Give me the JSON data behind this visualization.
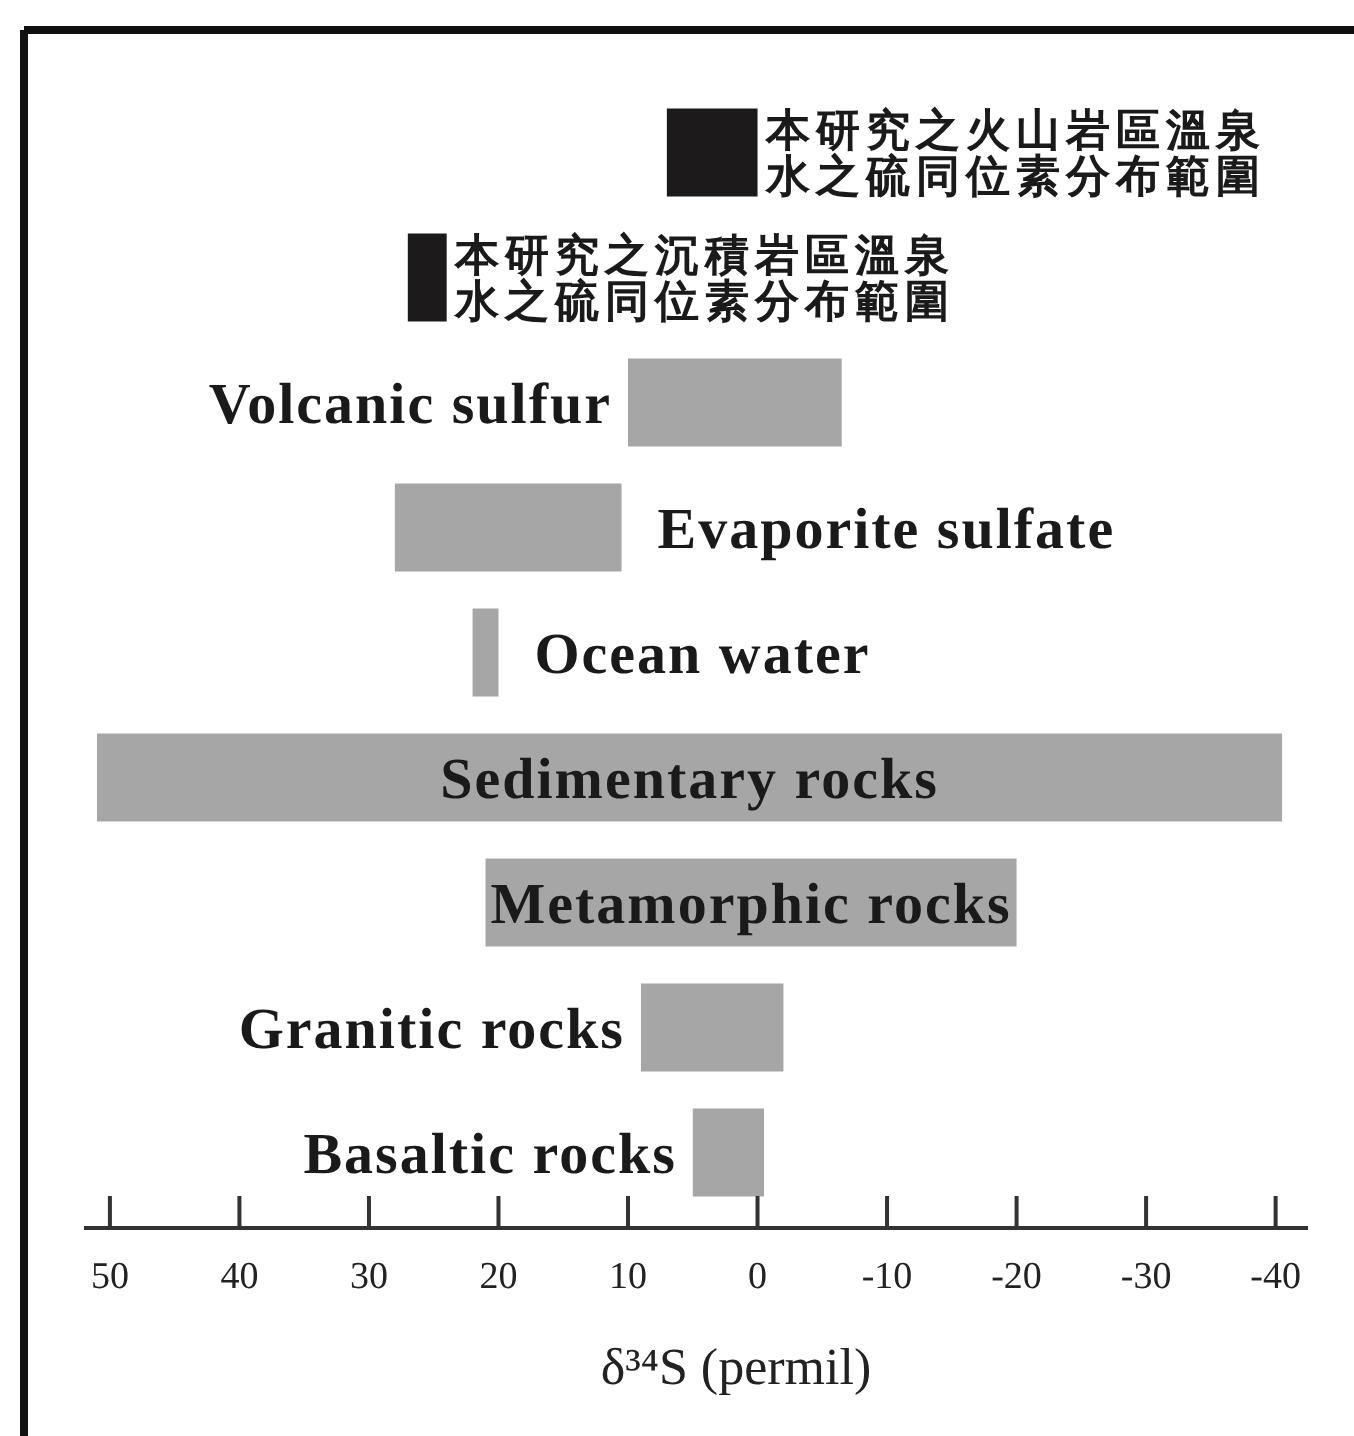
{
  "chart_data": {
    "type": "bar",
    "orientation": "horizontal",
    "categories": [
      "本研究之火山岩區溫泉水之硫同位素分布範圍",
      "本研究之沉積岩區溫泉水之硫同位素分布範圍",
      "Volcanic sulfur",
      "Evaporite sulfate",
      "Ocean water",
      "Sedimentary rocks",
      "Metamorphic rocks",
      "Granitic rocks",
      "Basaltic rocks"
    ],
    "base": [
      7,
      27,
      10,
      28,
      22,
      51,
      21,
      9,
      5
    ],
    "values": [
      -7,
      -3,
      -16.5,
      -17.5,
      -2,
      -91.5,
      -41,
      -11,
      -5.5
    ],
    "colors": [
      "#1c1a1a",
      "#1c1a1a",
      "#a6a6a6",
      "#a6a6a6",
      "#a6a6a6",
      "#a6a6a6",
      "#a6a6a6",
      "#a6a6a6",
      "#a6a6a6"
    ],
    "xlim": [
      52,
      -42.5
    ],
    "xticks": [
      50,
      40,
      30,
      20,
      10,
      0,
      -10,
      -20,
      -30,
      -40
    ],
    "xlabel": "δ³⁴S (permil)"
  }
}
